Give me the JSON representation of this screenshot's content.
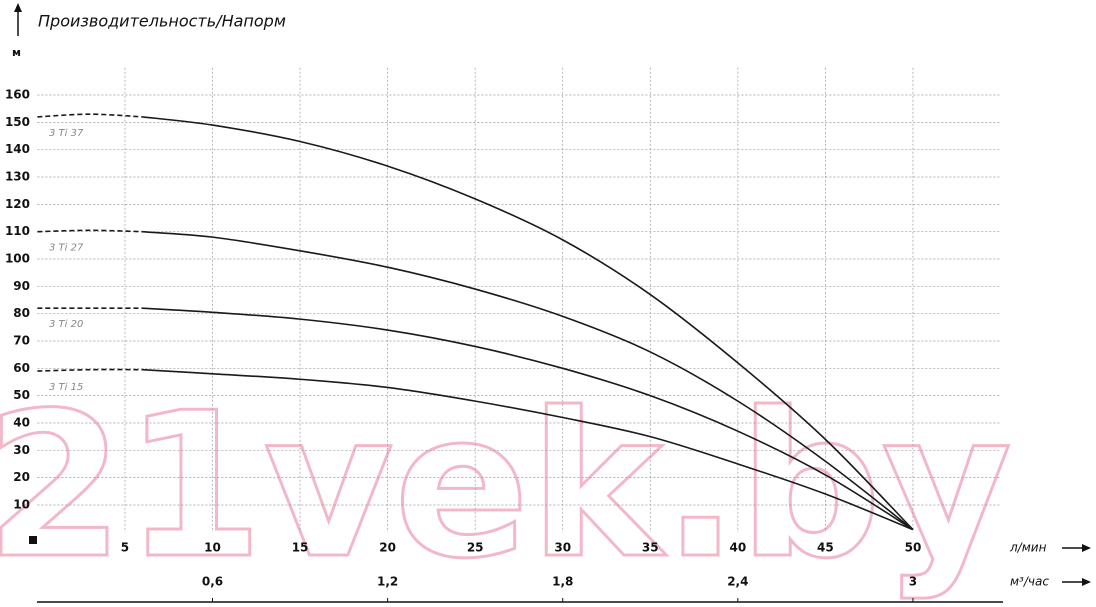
{
  "chart_data": {
    "type": "line",
    "title": "Производительность/Напорм",
    "y_unit": "м",
    "x_unit": "л/мин",
    "x2_unit": "м³/час",
    "watermark": "21vek.by",
    "x": [
      0,
      3,
      6,
      10,
      15,
      20,
      25,
      30,
      35,
      40,
      45,
      50
    ],
    "series": [
      {
        "name": "3 Ti 37",
        "color": "#1a1a1a",
        "dashed_values": [
          152,
          153,
          152,
          null,
          null,
          null,
          null,
          null,
          null,
          null,
          null,
          null
        ],
        "values": [
          null,
          null,
          152,
          149,
          143,
          134,
          122,
          107,
          87,
          62,
          34,
          1
        ]
      },
      {
        "name": "3 Ti 27",
        "color": "#1a1a1a",
        "dashed_values": [
          110,
          110.5,
          110,
          null,
          null,
          null,
          null,
          null,
          null,
          null,
          null,
          null
        ],
        "values": [
          null,
          null,
          110,
          108,
          103,
          97,
          89,
          79,
          66,
          48,
          26,
          1
        ]
      },
      {
        "name": "3 Ti 20",
        "color": "#1a1a1a",
        "dashed_values": [
          82,
          82,
          82,
          null,
          null,
          null,
          null,
          null,
          null,
          null,
          null,
          null
        ],
        "values": [
          null,
          null,
          82,
          80.5,
          78,
          74,
          68,
          60,
          50,
          37,
          21,
          1
        ]
      },
      {
        "name": "3 Ti 15",
        "color": "#1a1a1a",
        "dashed_values": [
          59,
          59.5,
          59.5,
          null,
          null,
          null,
          null,
          null,
          null,
          null,
          null,
          null
        ],
        "values": [
          null,
          null,
          59.5,
          58,
          56,
          53,
          48,
          42,
          35,
          25,
          14,
          1
        ]
      }
    ],
    "xlim": [
      0,
      55
    ],
    "xticks": [
      5,
      10,
      15,
      20,
      25,
      30,
      35,
      40,
      45,
      50
    ],
    "x2lim": [
      0,
      3.3
    ],
    "x2ticks": [
      {
        "value": 0.6,
        "label": "0,6"
      },
      {
        "value": 1.2,
        "label": "1,2"
      },
      {
        "value": 1.8,
        "label": "1,8"
      },
      {
        "value": 2.4,
        "label": "2,4"
      },
      3
    ],
    "ylim": [
      0,
      170
    ],
    "yticks": [
      10,
      20,
      30,
      40,
      50,
      60,
      70,
      80,
      90,
      100,
      110,
      120,
      130,
      140,
      150,
      160
    ],
    "grid": true
  }
}
